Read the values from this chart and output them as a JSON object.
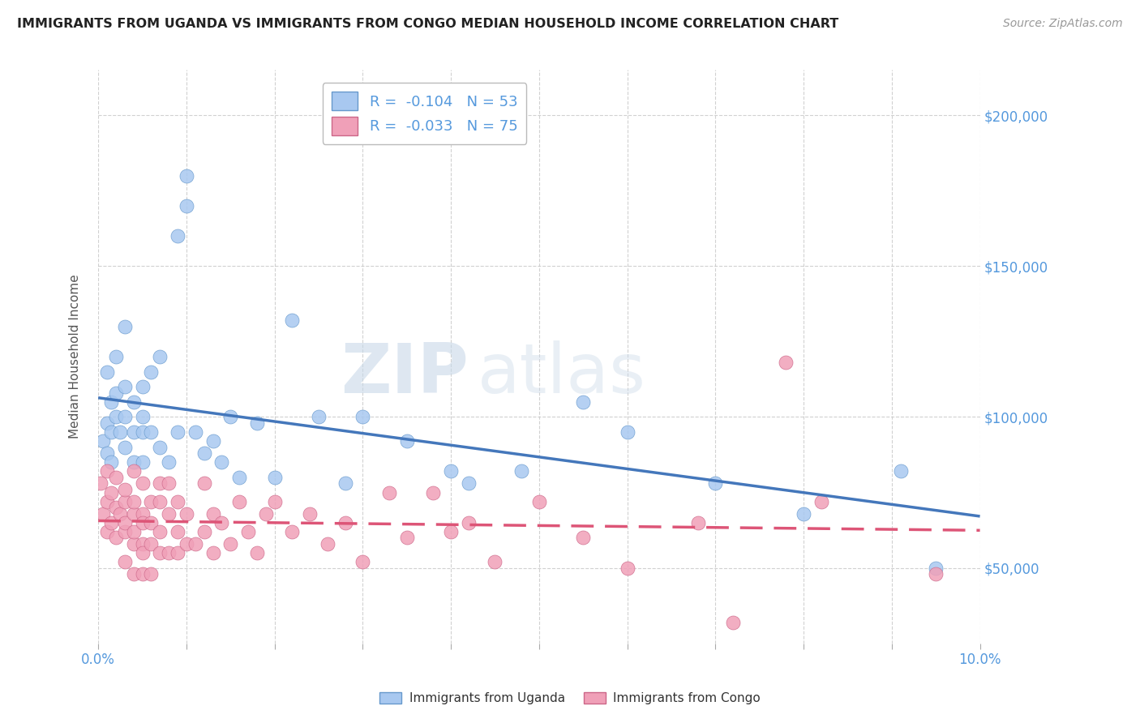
{
  "title": "IMMIGRANTS FROM UGANDA VS IMMIGRANTS FROM CONGO MEDIAN HOUSEHOLD INCOME CORRELATION CHART",
  "source": "Source: ZipAtlas.com",
  "ylabel": "Median Household Income",
  "xlim": [
    0.0,
    0.1
  ],
  "ylim": [
    25000,
    215000
  ],
  "yticks": [
    50000,
    100000,
    150000,
    200000
  ],
  "ytick_labels": [
    "$50,000",
    "$100,000",
    "$150,000",
    "$200,000"
  ],
  "xticks": [
    0.0,
    0.01,
    0.02,
    0.03,
    0.04,
    0.05,
    0.06,
    0.07,
    0.08,
    0.09,
    0.1
  ],
  "watermark_zip": "ZIP",
  "watermark_atlas": "atlas",
  "uganda_color": "#a8c8f0",
  "uganda_edge_color": "#6699cc",
  "congo_color": "#f0a0b8",
  "congo_edge_color": "#cc6688",
  "uganda_line_color": "#4477bb",
  "congo_line_color": "#dd5577",
  "legend_uganda_label": "R =  -0.104   N = 53",
  "legend_congo_label": "R =  -0.033   N = 75",
  "background_color": "#ffffff",
  "grid_color": "#cccccc",
  "axis_label_color": "#5599dd",
  "title_color": "#222222",
  "source_color": "#999999",
  "ylabel_color": "#555555",
  "uganda_points_x": [
    0.0005,
    0.001,
    0.001,
    0.0015,
    0.001,
    0.0015,
    0.002,
    0.0015,
    0.002,
    0.002,
    0.0025,
    0.003,
    0.003,
    0.003,
    0.003,
    0.004,
    0.004,
    0.004,
    0.005,
    0.005,
    0.005,
    0.005,
    0.006,
    0.006,
    0.007,
    0.007,
    0.008,
    0.009,
    0.009,
    0.01,
    0.01,
    0.011,
    0.012,
    0.013,
    0.014,
    0.015,
    0.016,
    0.018,
    0.02,
    0.022,
    0.025,
    0.028,
    0.03,
    0.035,
    0.04,
    0.042,
    0.048,
    0.055,
    0.06,
    0.07,
    0.08,
    0.091,
    0.095
  ],
  "uganda_points_y": [
    92000,
    98000,
    88000,
    105000,
    115000,
    95000,
    108000,
    85000,
    100000,
    120000,
    95000,
    110000,
    130000,
    90000,
    100000,
    105000,
    85000,
    95000,
    110000,
    95000,
    85000,
    100000,
    95000,
    115000,
    120000,
    90000,
    85000,
    160000,
    95000,
    170000,
    180000,
    95000,
    88000,
    92000,
    85000,
    100000,
    80000,
    98000,
    80000,
    132000,
    100000,
    78000,
    100000,
    92000,
    82000,
    78000,
    82000,
    105000,
    95000,
    78000,
    68000,
    82000,
    50000
  ],
  "congo_points_x": [
    0.0003,
    0.0005,
    0.001,
    0.001,
    0.001,
    0.0015,
    0.0015,
    0.002,
    0.002,
    0.002,
    0.0025,
    0.003,
    0.003,
    0.003,
    0.003,
    0.003,
    0.004,
    0.004,
    0.004,
    0.004,
    0.004,
    0.004,
    0.005,
    0.005,
    0.005,
    0.005,
    0.005,
    0.005,
    0.006,
    0.006,
    0.006,
    0.006,
    0.007,
    0.007,
    0.007,
    0.007,
    0.008,
    0.008,
    0.008,
    0.009,
    0.009,
    0.009,
    0.01,
    0.01,
    0.011,
    0.012,
    0.012,
    0.013,
    0.013,
    0.014,
    0.015,
    0.016,
    0.017,
    0.018,
    0.019,
    0.02,
    0.022,
    0.024,
    0.026,
    0.028,
    0.03,
    0.033,
    0.035,
    0.038,
    0.04,
    0.042,
    0.045,
    0.05,
    0.055,
    0.06,
    0.068,
    0.072,
    0.078,
    0.082,
    0.095
  ],
  "congo_points_y": [
    78000,
    68000,
    72000,
    62000,
    82000,
    75000,
    65000,
    70000,
    60000,
    80000,
    68000,
    72000,
    62000,
    52000,
    76000,
    65000,
    68000,
    58000,
    48000,
    82000,
    72000,
    62000,
    68000,
    58000,
    48000,
    78000,
    65000,
    55000,
    65000,
    72000,
    58000,
    48000,
    62000,
    72000,
    55000,
    78000,
    68000,
    55000,
    78000,
    62000,
    55000,
    72000,
    68000,
    58000,
    58000,
    62000,
    78000,
    68000,
    55000,
    65000,
    58000,
    72000,
    62000,
    55000,
    68000,
    72000,
    62000,
    68000,
    58000,
    65000,
    52000,
    75000,
    60000,
    75000,
    62000,
    65000,
    52000,
    72000,
    60000,
    50000,
    65000,
    32000,
    118000,
    72000,
    48000
  ]
}
